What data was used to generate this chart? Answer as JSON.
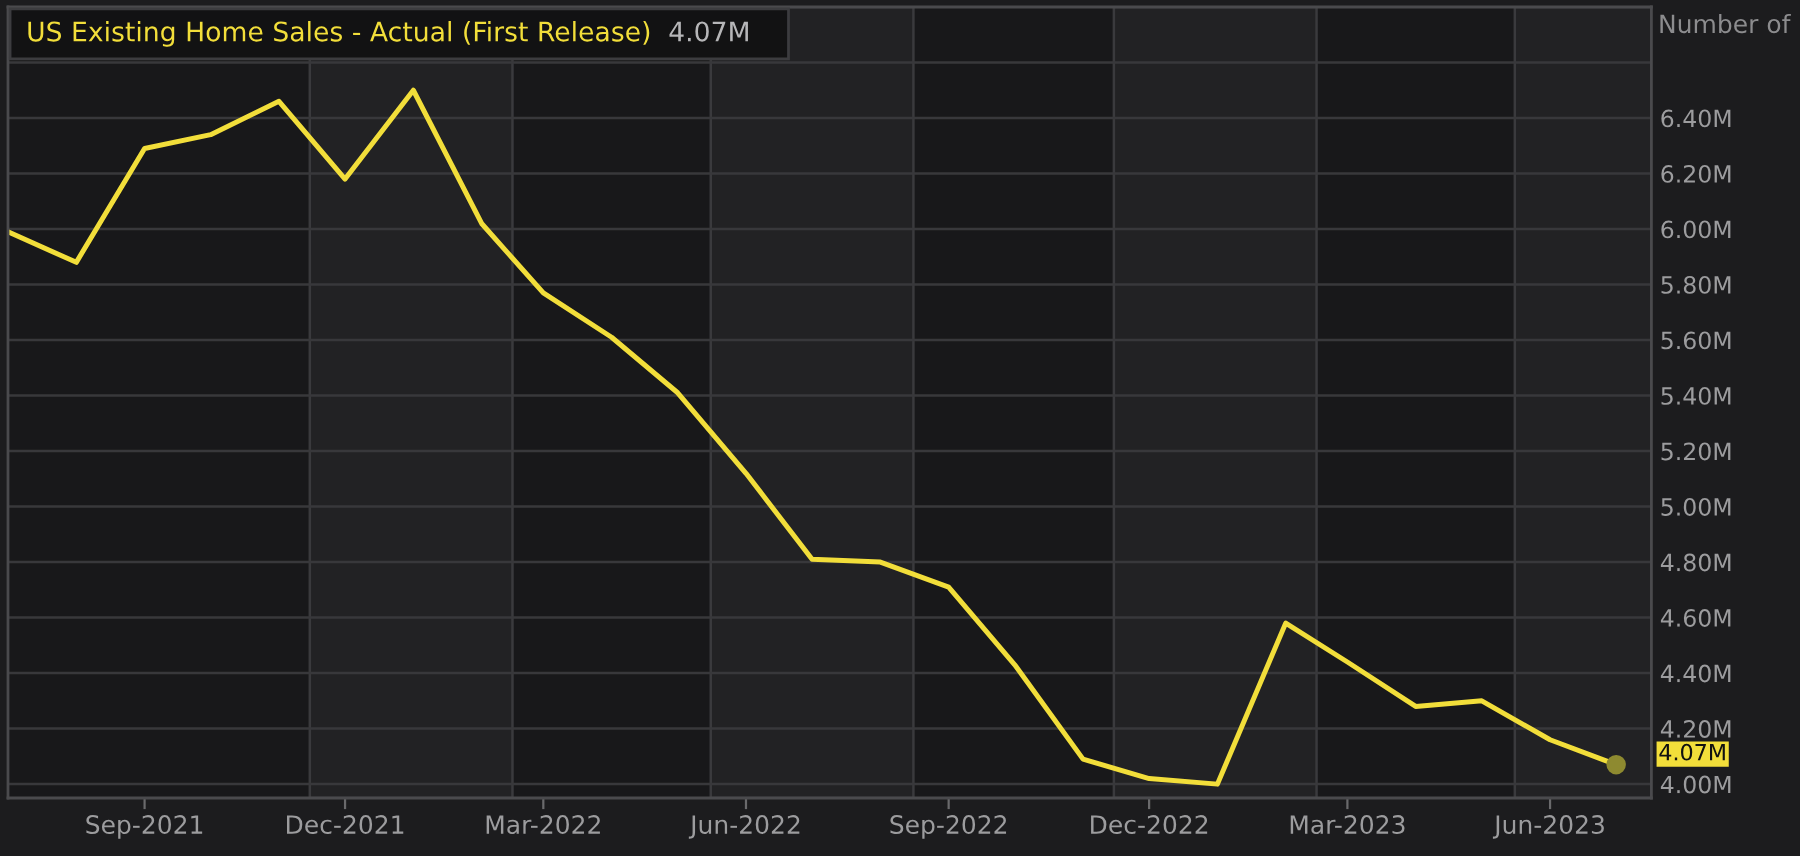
{
  "chart_data": {
    "type": "line",
    "title": "US Existing Home Sales - Actual (First Release)",
    "subtitle": "4.07M",
    "ylabel": "Number of",
    "x": [
      "2021-07",
      "2021-08",
      "2021-09",
      "2021-10",
      "2021-11",
      "2021-12",
      "2022-01",
      "2022-02",
      "2022-03",
      "2022-04",
      "2022-05",
      "2022-06",
      "2022-07",
      "2022-08",
      "2022-09",
      "2022-10",
      "2022-11",
      "2022-12",
      "2023-01",
      "2023-02",
      "2023-03",
      "2023-04",
      "2023-05",
      "2023-06",
      "2023-07"
    ],
    "series": [
      {
        "color": "#f2de3a",
        "values": [
          5.99,
          5.88,
          6.29,
          6.34,
          6.46,
          6.18,
          6.5,
          6.02,
          5.77,
          5.61,
          5.41,
          5.12,
          4.81,
          4.8,
          4.71,
          4.43,
          4.09,
          4.02,
          4.0,
          4.58,
          4.44,
          4.28,
          4.3,
          4.16,
          4.07
        ]
      }
    ],
    "xlim": [
      "2021-07-01",
      "2023-07-17"
    ],
    "xticks": [
      {
        "value": "2021-09",
        "label": "Sep-2021"
      },
      {
        "value": "2021-12",
        "label": "Dec-2021"
      },
      {
        "value": "2022-03",
        "label": "Mar-2022"
      },
      {
        "value": "2022-06",
        "label": "Jun-2022"
      },
      {
        "value": "2022-09",
        "label": "Sep-2022"
      },
      {
        "value": "2022-12",
        "label": "Dec-2022"
      },
      {
        "value": "2023-03",
        "label": "Mar-2023"
      },
      {
        "value": "2023-06",
        "label": "Jun-2023"
      }
    ],
    "ylim": [
      3.95,
      6.8
    ],
    "yticks": [
      {
        "value": 4.0,
        "label": "4.00M"
      },
      {
        "value": 4.2,
        "label": "4.20M"
      },
      {
        "value": 4.4,
        "label": "4.40M"
      },
      {
        "value": 4.6,
        "label": "4.60M"
      },
      {
        "value": 4.8,
        "label": "4.80M"
      },
      {
        "value": 5.0,
        "label": "5.00M"
      },
      {
        "value": 5.2,
        "label": "5.20M"
      },
      {
        "value": 5.4,
        "label": "5.40M"
      },
      {
        "value": 5.6,
        "label": "5.60M"
      },
      {
        "value": 5.8,
        "label": "5.80M"
      },
      {
        "value": 6.0,
        "label": "6.00M"
      },
      {
        "value": 6.2,
        "label": "6.20M"
      },
      {
        "value": 6.4,
        "label": "6.40M"
      },
      {
        "value": 6.6,
        "label": null
      }
    ],
    "grid": "y",
    "line_style": "solid",
    "bands": [
      {
        "axis": "x",
        "from": "2021-11-15",
        "to": "2022-02-15",
        "color": "#222224"
      },
      {
        "axis": "x",
        "from": "2022-05-16",
        "to": "2022-08-16",
        "color": "#222224"
      },
      {
        "axis": "x",
        "from": "2022-11-15",
        "to": "2023-02-15",
        "color": "#222224"
      },
      {
        "axis": "x",
        "from": "2023-05-16",
        "to": "2023-07-17",
        "color": "#222224"
      }
    ],
    "annotations": [
      {
        "text": "4.07M",
        "x": "2023-07",
        "y": 4.07
      }
    ]
  }
}
